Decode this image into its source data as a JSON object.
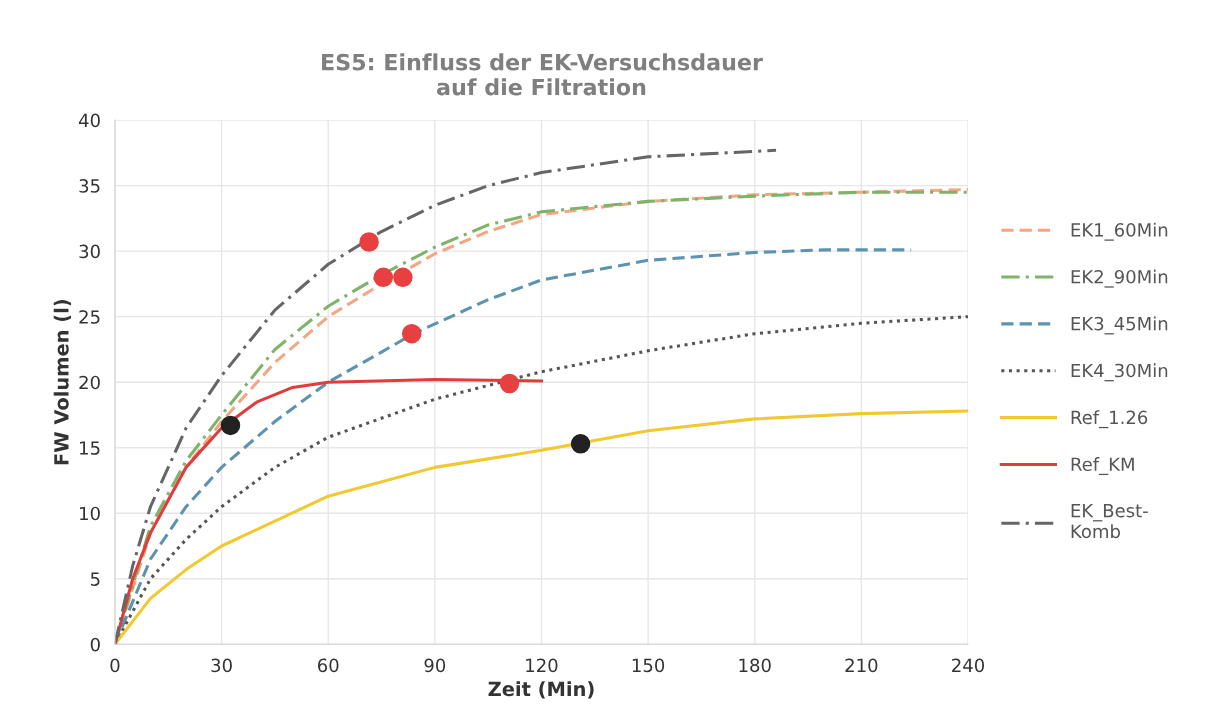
{
  "chart_data": {
    "type": "line",
    "title": "ES5: Einfluss der EK-Versuchsdauer\nauf die Filtration",
    "xlabel": "Zeit (Min)",
    "ylabel": "FW Volumen (l)",
    "xlim": [
      0,
      240
    ],
    "xticks": [
      0,
      30,
      60,
      90,
      120,
      150,
      180,
      210,
      240
    ],
    "ylim": [
      0,
      40
    ],
    "yticks": [
      0,
      5,
      10,
      15,
      20,
      25,
      30,
      35,
      40
    ],
    "grid": true,
    "legend": "right",
    "marker": "none",
    "series": [
      {
        "name": "EK1_60Min",
        "color": "#f4a582",
        "line_style": "dashed",
        "x": [
          0,
          10,
          20,
          30,
          45,
          60,
          75,
          90,
          105,
          120,
          150,
          180,
          210,
          240
        ],
        "values": [
          0,
          8.5,
          13.5,
          17,
          21.5,
          25,
          27.5,
          29.8,
          31.5,
          32.8,
          33.8,
          34.3,
          34.5,
          34.7
        ]
      },
      {
        "name": "EK2_90Min",
        "color": "#7fb36a",
        "line_style": "dashdot",
        "x": [
          0,
          10,
          20,
          30,
          45,
          60,
          75,
          90,
          105,
          120,
          150,
          180,
          210,
          240
        ],
        "values": [
          0,
          9,
          14,
          17.5,
          22.5,
          25.8,
          28.2,
          30.3,
          32,
          33,
          33.8,
          34.2,
          34.5,
          34.5
        ]
      },
      {
        "name": "EK3_45Min",
        "color": "#5b93b0",
        "line_style": "dashed",
        "x": [
          0,
          10,
          20,
          30,
          45,
          60,
          75,
          84,
          105,
          120,
          150,
          180,
          200,
          224
        ],
        "values": [
          0,
          6.5,
          10.5,
          13.5,
          17,
          20,
          22.3,
          23.7,
          26.3,
          27.8,
          29.3,
          29.9,
          30.1,
          30.1
        ]
      },
      {
        "name": "EK4_30Min",
        "color": "#555555",
        "line_style": "dotted",
        "x": [
          0,
          10,
          20,
          30,
          45,
          60,
          90,
          120,
          150,
          180,
          210,
          240
        ],
        "values": [
          0,
          5,
          8,
          10.5,
          13.5,
          15.8,
          18.7,
          20.8,
          22.4,
          23.7,
          24.5,
          25
        ]
      },
      {
        "name": "Ref_1.26",
        "color": "#f2c830",
        "line_style": "solid",
        "x": [
          0,
          10,
          20,
          30,
          60,
          90,
          120,
          150,
          180,
          210,
          240
        ],
        "values": [
          0,
          3.5,
          5.7,
          7.5,
          11.3,
          13.5,
          14.8,
          16.3,
          17.2,
          17.6,
          17.8
        ]
      },
      {
        "name": "Ref_KM",
        "color": "#e03c3c",
        "line_style": "solid",
        "x": [
          0,
          5,
          10,
          20,
          30,
          40,
          50,
          60,
          90,
          120
        ],
        "values": [
          0,
          5,
          8.5,
          13.5,
          16.5,
          18.5,
          19.6,
          20,
          20.2,
          20.1
        ]
      },
      {
        "name": "EK_Best-\nKomb",
        "color": "#666666",
        "line_style": "dashdot",
        "x": [
          0,
          5,
          10,
          20,
          30,
          45,
          60,
          75,
          90,
          105,
          120,
          150,
          186
        ],
        "values": [
          0,
          6,
          10.5,
          16.5,
          20.5,
          25.5,
          29,
          31.5,
          33.5,
          35,
          36,
          37.2,
          37.7
        ]
      },
      {
        "type": "scatter",
        "color": "#e84040",
        "marker": "circle",
        "x": [
          71.5,
          75.5,
          81,
          83.5,
          111
        ],
        "values": [
          30.7,
          28,
          28,
          23.7,
          19.9
        ]
      },
      {
        "type": "scatter",
        "color": "#222222",
        "marker": "circle",
        "x": [
          32.5,
          131
        ],
        "values": [
          16.7,
          15.3
        ]
      }
    ]
  }
}
